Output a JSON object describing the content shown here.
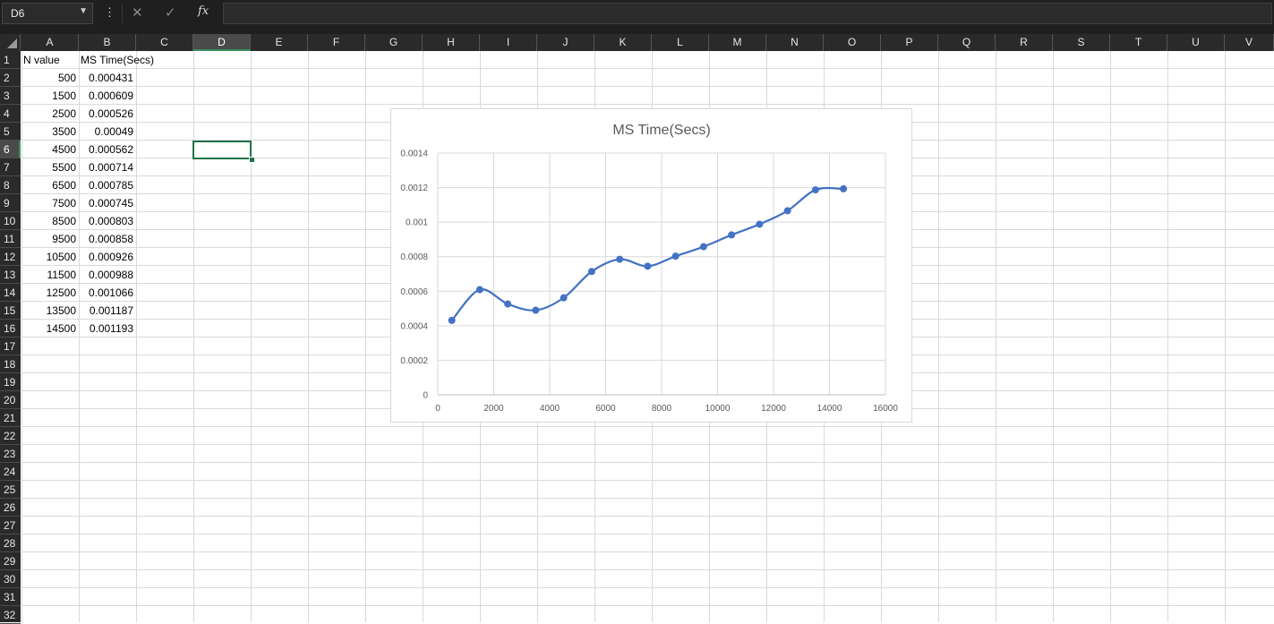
{
  "formula_bar": {
    "name_box": "D6",
    "formula": "",
    "icons": {
      "more": "vertical-ellipsis-icon",
      "cancel": "x-icon",
      "enter": "check-icon",
      "function": "fx-icon"
    }
  },
  "columns": [
    "A",
    "B",
    "C",
    "D",
    "E",
    "F",
    "G",
    "H",
    "I",
    "J",
    "K",
    "L",
    "M",
    "N",
    "O",
    "P",
    "Q",
    "R",
    "S",
    "T",
    "U",
    "V"
  ],
  "active_column": "D",
  "rows": [
    "1",
    "2",
    "3",
    "4",
    "5",
    "6",
    "7",
    "8",
    "9",
    "10",
    "11",
    "12",
    "13",
    "14",
    "15",
    "16",
    "17",
    "18",
    "19",
    "20",
    "21",
    "22",
    "23",
    "24",
    "25",
    "26",
    "27",
    "28",
    "29",
    "30",
    "31",
    "32"
  ],
  "active_row": "6",
  "sheet": {
    "header": {
      "a": "N value",
      "b": "MS Time(Secs)"
    },
    "data": [
      {
        "a": "500",
        "b": "0.000431"
      },
      {
        "a": "1500",
        "b": "0.000609"
      },
      {
        "a": "2500",
        "b": "0.000526"
      },
      {
        "a": "3500",
        "b": "0.00049"
      },
      {
        "a": "4500",
        "b": "0.000562"
      },
      {
        "a": "5500",
        "b": "0.000714"
      },
      {
        "a": "6500",
        "b": "0.000785"
      },
      {
        "a": "7500",
        "b": "0.000745"
      },
      {
        "a": "8500",
        "b": "0.000803"
      },
      {
        "a": "9500",
        "b": "0.000858"
      },
      {
        "a": "10500",
        "b": "0.000926"
      },
      {
        "a": "11500",
        "b": "0.000988"
      },
      {
        "a": "12500",
        "b": "0.001066"
      },
      {
        "a": "13500",
        "b": "0.001187"
      },
      {
        "a": "14500",
        "b": "0.001193"
      }
    ]
  },
  "colors": {
    "accent": "#217346",
    "series": "#4472c4"
  },
  "chart_data": {
    "type": "scatter",
    "title": "MS Time(Secs)",
    "xlabel": "",
    "ylabel": "",
    "x": [
      500,
      1500,
      2500,
      3500,
      4500,
      5500,
      6500,
      7500,
      8500,
      9500,
      10500,
      11500,
      12500,
      13500,
      14500
    ],
    "series": [
      {
        "values": [
          0.000431,
          0.000609,
          0.000526,
          0.00049,
          0.000562,
          0.000714,
          0.000785,
          0.000745,
          0.000803,
          0.000858,
          0.000926,
          0.000988,
          0.001066,
          0.001187,
          0.001193
        ]
      }
    ],
    "xlim": [
      0,
      16000
    ],
    "ylim": [
      0,
      0.0014
    ],
    "xticks": [
      "0",
      "2000",
      "4000",
      "6000",
      "8000",
      "10000",
      "12000",
      "14000",
      "16000"
    ],
    "yticks": [
      "0",
      "0.0002",
      "0.0004",
      "0.0006",
      "0.0008",
      "0.001",
      "0.0012",
      "0.0014"
    ],
    "smoothed_line": true,
    "grid": true,
    "legend": "none"
  }
}
